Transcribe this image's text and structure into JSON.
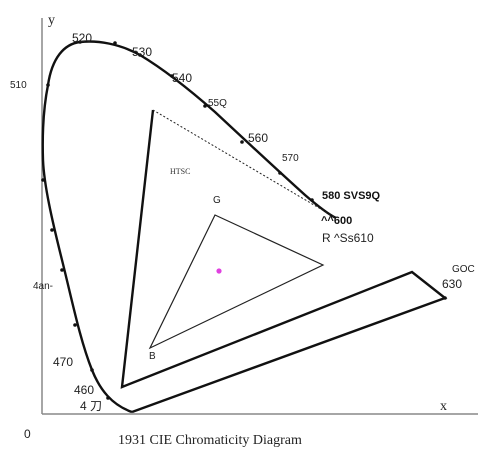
{
  "diagram": {
    "caption": "1931 CIE Chromaticity Diagram",
    "axis_y": "y",
    "axis_x": "x",
    "origin": "0",
    "wavelengths": {
      "w520": "520",
      "w530": "530",
      "w540": "540",
      "w550": "55Q",
      "w560": "560",
      "w570": "570",
      "w580": "580 SVS9Q",
      "w600": "^^600",
      "w610": "R ^Ss610",
      "w630": "630",
      "w510": "510",
      "w490": "4an-",
      "w470": "470",
      "w460": "460",
      "w450": "4 刀"
    },
    "labels": {
      "ntsc": "HTSC",
      "green": "G",
      "blue": "B",
      "goc": "GOC"
    },
    "colors": {
      "white_point": "#e040e0"
    }
  }
}
